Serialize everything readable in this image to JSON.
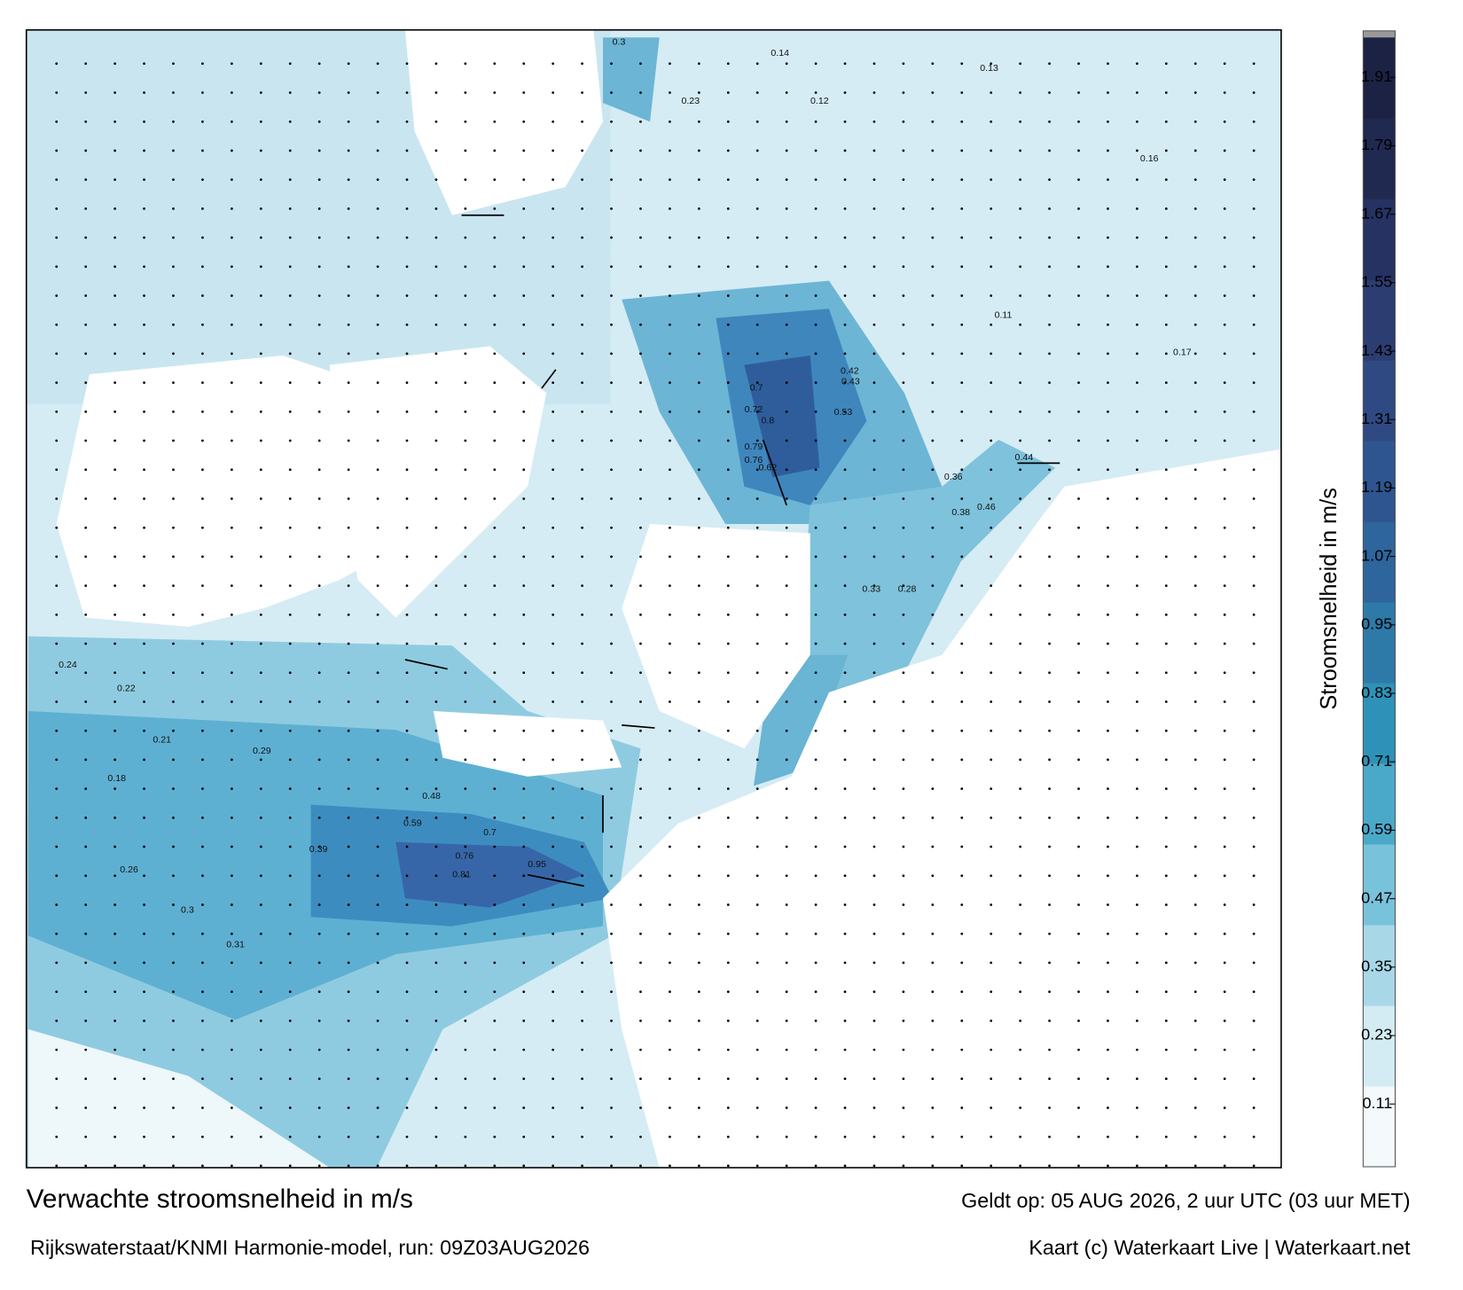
{
  "title": "Verwachte stroomsnelheid in m/s",
  "valid": "Geldt op: 05 AUG 2026, 2 uur UTC (03 uur MET)",
  "model": "Rijkswaterstaat/KNMI Harmonie-model, run: 09Z03AUG2026",
  "credit": "Kaart (c) Waterkaart Live | Waterkaart.net",
  "colorbar": {
    "label": "Stroomsnelheid in m/s",
    "lim": [
      0,
      1.98
    ],
    "ticks": [
      0.11,
      0.23,
      0.35,
      0.47,
      0.59,
      0.71,
      0.83,
      0.95,
      1.07,
      1.19,
      1.31,
      1.43,
      1.55,
      1.67,
      1.79,
      1.91
    ],
    "colors": [
      "#f4fafc",
      "#d3ebf3",
      "#a8d8e8",
      "#79c2db",
      "#4aa9c9",
      "#2e92b8",
      "#2d7aa9",
      "#2d659c",
      "#2e558f",
      "#2f4a82",
      "#2c3d72",
      "#263262",
      "#20294f",
      "#1b2243"
    ]
  },
  "map": {
    "labels": [
      0.3,
      0.14,
      0.13,
      0.12,
      0.23,
      0.7,
      0.72,
      0.8,
      0.79,
      0.76,
      0.62,
      0.53,
      0.43,
      0.42,
      0.44,
      0.36,
      0.38,
      0.46,
      0.33,
      0.28,
      0.48,
      0.59,
      0.7,
      0.76,
      0.81,
      0.95,
      0.39,
      0.29,
      0.3,
      0.31,
      0.22,
      0.24,
      0.26,
      0.18,
      0.21,
      0.16,
      0.11,
      0.17
    ]
  }
}
